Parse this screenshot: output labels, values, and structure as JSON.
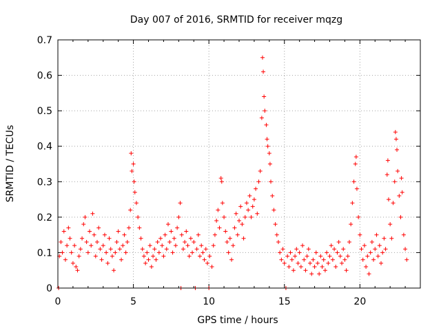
{
  "chart_data": {
    "type": "scatter",
    "title": "Day 007 of 2016, SRMTID for receiver mqzg",
    "xlabel": "GPS time / hours",
    "ylabel": "SRMTID / TECUs",
    "xlim": [
      0,
      24
    ],
    "ylim": [
      0,
      0.7
    ],
    "xticks": [
      0,
      5,
      10,
      15,
      20
    ],
    "xtick_labels": [
      "0",
      "5",
      "10",
      "15",
      "20"
    ],
    "yticks": [
      0,
      0.1,
      0.2,
      0.3,
      0.4,
      0.5,
      0.6,
      0.7
    ],
    "ytick_labels": [
      "0",
      "0.1",
      "0.2",
      "0.3",
      "0.4",
      "0.5",
      "0.6",
      "0.7"
    ],
    "grid": true,
    "marker": "plus",
    "color": "#ff0000",
    "series": [
      {
        "name": "SRMTID",
        "points": [
          [
            0.05,
            0.0
          ],
          [
            0.1,
            0.09
          ],
          [
            0.2,
            0.13
          ],
          [
            0.3,
            0.1
          ],
          [
            0.4,
            0.16
          ],
          [
            0.5,
            0.08
          ],
          [
            0.6,
            0.12
          ],
          [
            0.7,
            0.17
          ],
          [
            0.8,
            0.14
          ],
          [
            0.9,
            0.1
          ],
          [
            1.0,
            0.07
          ],
          [
            1.1,
            0.12
          ],
          [
            1.2,
            0.06
          ],
          [
            1.3,
            0.05
          ],
          [
            1.4,
            0.09
          ],
          [
            1.5,
            0.11
          ],
          [
            1.6,
            0.14
          ],
          [
            1.7,
            0.18
          ],
          [
            1.8,
            0.2
          ],
          [
            1.9,
            0.13
          ],
          [
            2.0,
            0.1
          ],
          [
            2.1,
            0.16
          ],
          [
            2.2,
            0.12
          ],
          [
            2.3,
            0.21
          ],
          [
            2.4,
            0.15
          ],
          [
            2.5,
            0.09
          ],
          [
            2.6,
            0.13
          ],
          [
            2.7,
            0.17
          ],
          [
            2.8,
            0.11
          ],
          [
            2.9,
            0.08
          ],
          [
            3.0,
            0.12
          ],
          [
            3.1,
            0.15
          ],
          [
            3.2,
            0.1
          ],
          [
            3.3,
            0.07
          ],
          [
            3.4,
            0.14
          ],
          [
            3.5,
            0.11
          ],
          [
            3.6,
            0.09
          ],
          [
            3.7,
            0.05
          ],
          [
            3.8,
            0.1
          ],
          [
            3.9,
            0.13
          ],
          [
            4.0,
            0.16
          ],
          [
            4.1,
            0.11
          ],
          [
            4.2,
            0.08
          ],
          [
            4.3,
            0.12
          ],
          [
            4.4,
            0.15
          ],
          [
            4.5,
            0.1
          ],
          [
            4.6,
            0.13
          ],
          [
            4.7,
            0.17
          ],
          [
            4.8,
            0.22
          ],
          [
            4.85,
            0.38
          ],
          [
            4.9,
            0.33
          ],
          [
            5.0,
            0.35
          ],
          [
            5.05,
            0.3
          ],
          [
            5.1,
            0.27
          ],
          [
            5.2,
            0.24
          ],
          [
            5.3,
            0.2
          ],
          [
            5.4,
            0.17
          ],
          [
            5.5,
            0.14
          ],
          [
            5.6,
            0.11
          ],
          [
            5.7,
            0.09
          ],
          [
            5.8,
            0.07
          ],
          [
            5.9,
            0.1
          ],
          [
            6.0,
            0.08
          ],
          [
            6.1,
            0.12
          ],
          [
            6.2,
            0.06
          ],
          [
            6.3,
            0.09
          ],
          [
            6.4,
            0.11
          ],
          [
            6.5,
            0.08
          ],
          [
            6.6,
            0.13
          ],
          [
            6.7,
            0.1
          ],
          [
            6.8,
            0.14
          ],
          [
            6.9,
            0.12
          ],
          [
            7.0,
            0.09
          ],
          [
            7.1,
            0.15
          ],
          [
            7.2,
            0.11
          ],
          [
            7.3,
            0.18
          ],
          [
            7.4,
            0.13
          ],
          [
            7.5,
            0.16
          ],
          [
            7.6,
            0.1
          ],
          [
            7.7,
            0.14
          ],
          [
            7.8,
            0.12
          ],
          [
            7.9,
            0.17
          ],
          [
            8.0,
            0.2
          ],
          [
            8.1,
            0.24
          ],
          [
            8.15,
            0.0
          ],
          [
            8.2,
            0.15
          ],
          [
            8.3,
            0.11
          ],
          [
            8.4,
            0.13
          ],
          [
            8.5,
            0.16
          ],
          [
            8.6,
            0.12
          ],
          [
            8.7,
            0.09
          ],
          [
            8.8,
            0.14
          ],
          [
            8.9,
            0.1
          ],
          [
            9.0,
            0.13
          ],
          [
            9.1,
            0.0
          ],
          [
            9.2,
            0.11
          ],
          [
            9.3,
            0.15
          ],
          [
            9.4,
            0.09
          ],
          [
            9.5,
            0.12
          ],
          [
            9.6,
            0.1
          ],
          [
            9.7,
            0.08
          ],
          [
            9.8,
            0.11
          ],
          [
            9.9,
            0.07
          ],
          [
            10.0,
            0.0
          ],
          [
            10.05,
            0.09
          ],
          [
            10.2,
            0.06
          ],
          [
            10.3,
            0.12
          ],
          [
            10.4,
            0.15
          ],
          [
            10.5,
            0.19
          ],
          [
            10.6,
            0.22
          ],
          [
            10.7,
            0.17
          ],
          [
            10.8,
            0.31
          ],
          [
            10.85,
            0.3
          ],
          [
            10.9,
            0.24
          ],
          [
            11.0,
            0.2
          ],
          [
            11.1,
            0.16
          ],
          [
            11.2,
            0.13
          ],
          [
            11.3,
            0.1
          ],
          [
            11.4,
            0.14
          ],
          [
            11.5,
            0.08
          ],
          [
            11.6,
            0.12
          ],
          [
            11.7,
            0.17
          ],
          [
            11.8,
            0.21
          ],
          [
            11.9,
            0.15
          ],
          [
            12.0,
            0.19
          ],
          [
            12.1,
            0.23
          ],
          [
            12.2,
            0.18
          ],
          [
            12.3,
            0.14
          ],
          [
            12.4,
            0.2
          ],
          [
            12.5,
            0.24
          ],
          [
            12.6,
            0.22
          ],
          [
            12.7,
            0.26
          ],
          [
            12.8,
            0.2
          ],
          [
            12.9,
            0.23
          ],
          [
            13.0,
            0.25
          ],
          [
            13.1,
            0.28
          ],
          [
            13.2,
            0.21
          ],
          [
            13.3,
            0.3
          ],
          [
            13.4,
            0.33
          ],
          [
            13.5,
            0.48
          ],
          [
            13.55,
            0.65
          ],
          [
            13.6,
            0.61
          ],
          [
            13.65,
            0.54
          ],
          [
            13.7,
            0.5
          ],
          [
            13.8,
            0.46
          ],
          [
            13.85,
            0.42
          ],
          [
            13.9,
            0.4
          ],
          [
            14.0,
            0.38
          ],
          [
            14.05,
            0.35
          ],
          [
            14.1,
            0.3
          ],
          [
            14.2,
            0.26
          ],
          [
            14.3,
            0.22
          ],
          [
            14.4,
            0.18
          ],
          [
            14.5,
            0.15
          ],
          [
            14.6,
            0.13
          ],
          [
            14.7,
            0.1
          ],
          [
            14.8,
            0.08
          ],
          [
            14.9,
            0.11
          ],
          [
            15.0,
            0.07
          ],
          [
            15.1,
            0.0
          ],
          [
            15.2,
            0.09
          ],
          [
            15.3,
            0.06
          ],
          [
            15.4,
            0.1
          ],
          [
            15.5,
            0.08
          ],
          [
            15.6,
            0.05
          ],
          [
            15.7,
            0.09
          ],
          [
            15.8,
            0.11
          ],
          [
            15.9,
            0.07
          ],
          [
            16.0,
            0.1
          ],
          [
            16.1,
            0.06
          ],
          [
            16.2,
            0.12
          ],
          [
            16.3,
            0.08
          ],
          [
            16.4,
            0.05
          ],
          [
            16.5,
            0.09
          ],
          [
            16.6,
            0.11
          ],
          [
            16.7,
            0.07
          ],
          [
            16.8,
            0.04
          ],
          [
            16.9,
            0.08
          ],
          [
            17.0,
            0.06
          ],
          [
            17.1,
            0.1
          ],
          [
            17.2,
            0.07
          ],
          [
            17.3,
            0.04
          ],
          [
            17.4,
            0.09
          ],
          [
            17.5,
            0.06
          ],
          [
            17.6,
            0.08
          ],
          [
            17.7,
            0.05
          ],
          [
            17.8,
            0.1
          ],
          [
            17.9,
            0.07
          ],
          [
            18.0,
            0.09
          ],
          [
            18.1,
            0.12
          ],
          [
            18.2,
            0.08
          ],
          [
            18.3,
            0.11
          ],
          [
            18.4,
            0.06
          ],
          [
            18.5,
            0.1
          ],
          [
            18.6,
            0.13
          ],
          [
            18.7,
            0.09
          ],
          [
            18.8,
            0.07
          ],
          [
            18.9,
            0.11
          ],
          [
            19.0,
            0.08
          ],
          [
            19.1,
            0.05
          ],
          [
            19.2,
            0.09
          ],
          [
            19.3,
            0.13
          ],
          [
            19.4,
            0.18
          ],
          [
            19.5,
            0.24
          ],
          [
            19.6,
            0.3
          ],
          [
            19.7,
            0.35
          ],
          [
            19.75,
            0.37
          ],
          [
            19.8,
            0.28
          ],
          [
            19.9,
            0.2
          ],
          [
            20.0,
            0.15
          ],
          [
            20.1,
            0.11
          ],
          [
            20.2,
            0.08
          ],
          [
            20.3,
            0.12
          ],
          [
            20.4,
            0.06
          ],
          [
            20.5,
            0.09
          ],
          [
            20.6,
            0.04
          ],
          [
            20.7,
            0.1
          ],
          [
            20.8,
            0.13
          ],
          [
            20.9,
            0.08
          ],
          [
            21.0,
            0.11
          ],
          [
            21.1,
            0.15
          ],
          [
            21.2,
            0.09
          ],
          [
            21.3,
            0.12
          ],
          [
            21.4,
            0.07
          ],
          [
            21.5,
            0.1
          ],
          [
            21.6,
            0.14
          ],
          [
            21.7,
            0.11
          ],
          [
            21.8,
            0.32
          ],
          [
            21.85,
            0.36
          ],
          [
            21.9,
            0.25
          ],
          [
            22.0,
            0.18
          ],
          [
            22.1,
            0.14
          ],
          [
            22.2,
            0.24
          ],
          [
            22.3,
            0.3
          ],
          [
            22.35,
            0.44
          ],
          [
            22.4,
            0.42
          ],
          [
            22.45,
            0.39
          ],
          [
            22.5,
            0.33
          ],
          [
            22.6,
            0.26
          ],
          [
            22.7,
            0.2
          ],
          [
            22.75,
            0.31
          ],
          [
            22.8,
            0.27
          ],
          [
            22.9,
            0.15
          ],
          [
            23.0,
            0.11
          ],
          [
            23.1,
            0.08
          ]
        ]
      }
    ]
  }
}
